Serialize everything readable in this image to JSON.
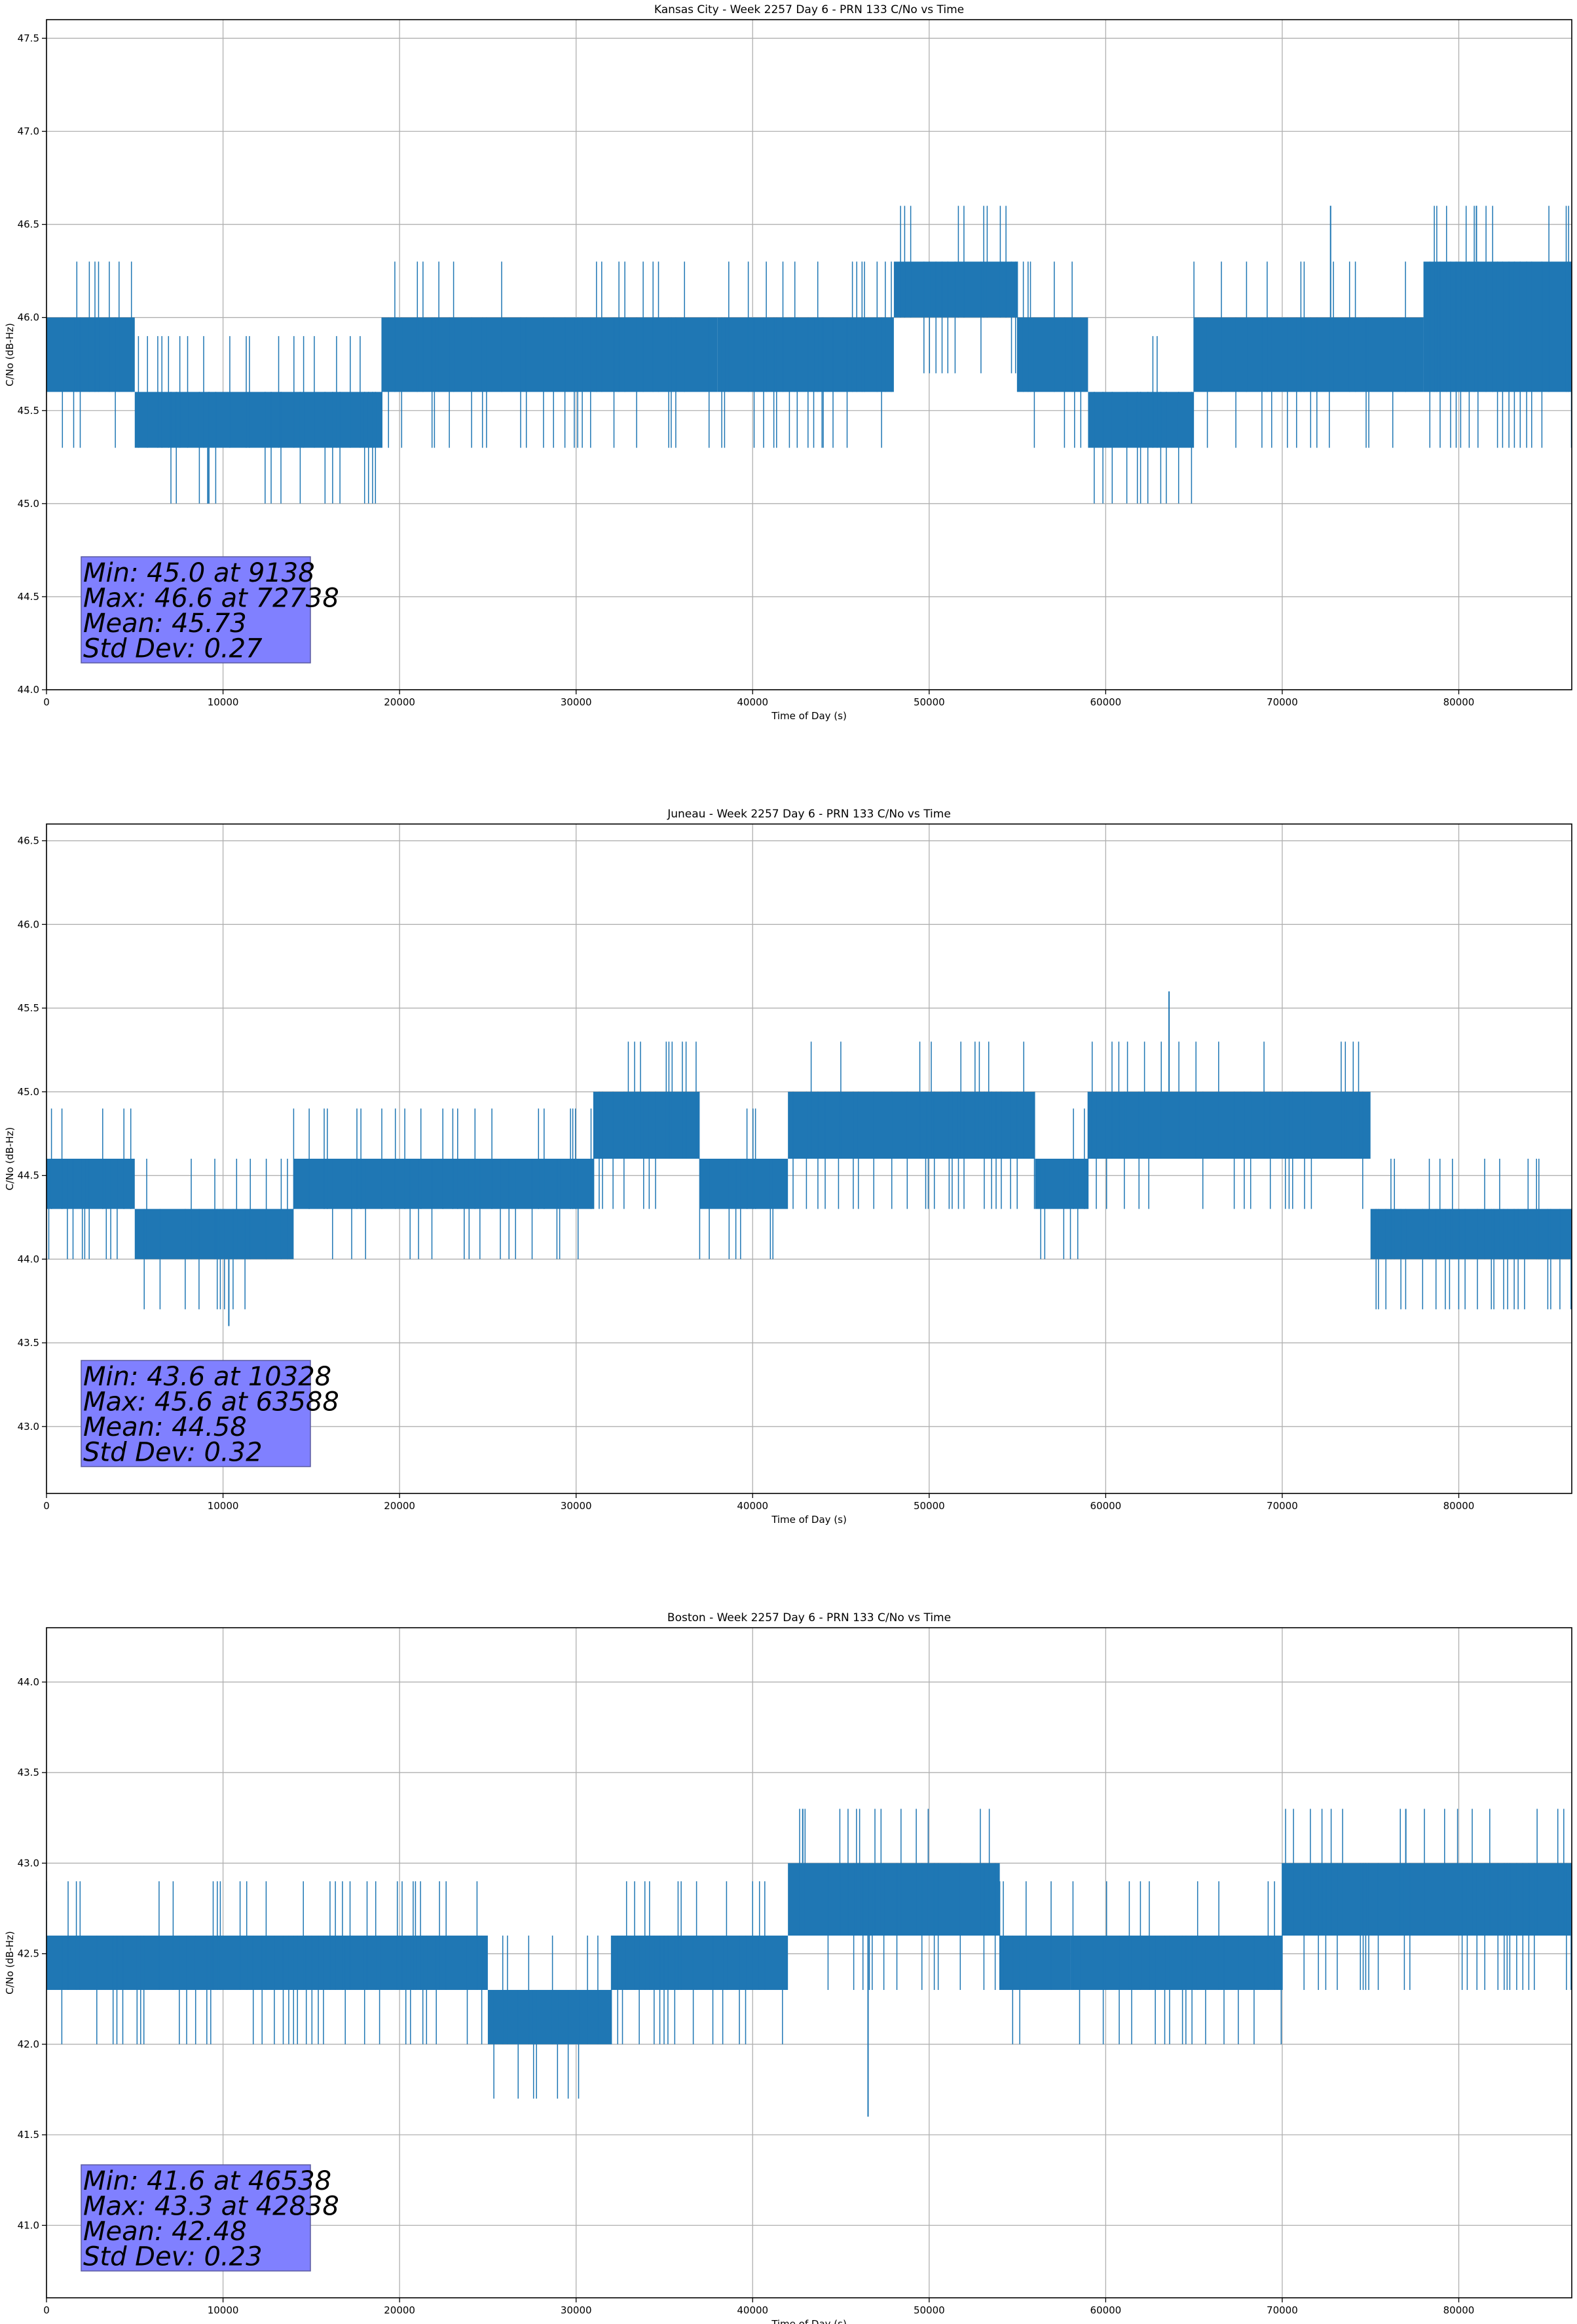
{
  "figure": {
    "series_color": "#1f77b4",
    "stats_box_color": "#8080ff"
  },
  "chart_data": [
    {
      "type": "line",
      "title": "Kansas City - Week 2257 Day 6 - PRN 133 C/No vs Time",
      "xlabel": "Time of Day (s)",
      "ylabel": "C/No (dB-Hz)",
      "xlim": [
        0,
        86400
      ],
      "ylim": [
        44.0,
        47.6
      ],
      "xticks": [
        0,
        10000,
        20000,
        30000,
        40000,
        50000,
        60000,
        70000,
        80000
      ],
      "yticks": [
        44.0,
        44.5,
        45.0,
        45.5,
        46.0,
        46.5,
        47.0,
        47.5
      ],
      "grid": true,
      "stats": {
        "min": "Min: 45.0 at 9138",
        "max": "Max: 46.6 at 72738",
        "mean": "Mean: 45.73",
        "std": "Std Dev: 0.27"
      },
      "series": [
        {
          "segments": [
            {
              "x": [
                0,
                5000
              ],
              "low": 45.6,
              "high": 46.0
            },
            {
              "x": [
                5000,
                19000
              ],
              "low": 45.3,
              "high": 45.6
            },
            {
              "x": [
                19000,
                38000
              ],
              "low": 45.6,
              "high": 46.0
            },
            {
              "x": [
                38000,
                44000
              ],
              "low": 45.6,
              "high": 46.0
            },
            {
              "x": [
                44000,
                48000
              ],
              "low": 45.6,
              "high": 46.0
            },
            {
              "x": [
                48000,
                55000
              ],
              "low": 46.0,
              "high": 46.3
            },
            {
              "x": [
                55000,
                59000
              ],
              "low": 45.6,
              "high": 46.0
            },
            {
              "x": [
                59000,
                65000
              ],
              "low": 45.3,
              "high": 45.6
            },
            {
              "x": [
                65000,
                78000
              ],
              "low": 45.6,
              "high": 46.0
            },
            {
              "x": [
                78000,
                86400
              ],
              "low": 45.6,
              "high": 46.3
            }
          ],
          "spikes": [
            {
              "x": 9138,
              "y": 45.0
            },
            {
              "x": 72738,
              "y": 46.6
            },
            {
              "x": 81000,
              "y": 46.6
            }
          ]
        }
      ]
    },
    {
      "type": "line",
      "title": "Juneau - Week 2257 Day 6 - PRN 133 C/No vs Time",
      "xlabel": "Time of Day (s)",
      "ylabel": "C/No (dB-Hz)",
      "xlim": [
        0,
        86400
      ],
      "ylim": [
        42.6,
        46.6
      ],
      "xticks": [
        0,
        10000,
        20000,
        30000,
        40000,
        50000,
        60000,
        70000,
        80000
      ],
      "yticks": [
        43.0,
        43.5,
        44.0,
        44.5,
        45.0,
        45.5,
        46.0,
        46.5
      ],
      "grid": true,
      "stats": {
        "min": "Min: 43.6 at 10328",
        "max": "Max: 45.6 at 63588",
        "mean": "Mean: 44.58",
        "std": "Std Dev: 0.32"
      },
      "series": [
        {
          "segments": [
            {
              "x": [
                0,
                5000
              ],
              "low": 44.3,
              "high": 44.6
            },
            {
              "x": [
                5000,
                14000
              ],
              "low": 44.0,
              "high": 44.3
            },
            {
              "x": [
                14000,
                31000
              ],
              "low": 44.3,
              "high": 44.6
            },
            {
              "x": [
                31000,
                37000
              ],
              "low": 44.6,
              "high": 45.0
            },
            {
              "x": [
                37000,
                42000
              ],
              "low": 44.3,
              "high": 44.6
            },
            {
              "x": [
                42000,
                56000
              ],
              "low": 44.6,
              "high": 45.0
            },
            {
              "x": [
                56000,
                59000
              ],
              "low": 44.3,
              "high": 44.6
            },
            {
              "x": [
                59000,
                75000
              ],
              "low": 44.6,
              "high": 45.0
            },
            {
              "x": [
                75000,
                86400
              ],
              "low": 44.0,
              "high": 44.3
            }
          ],
          "spikes": [
            {
              "x": 10328,
              "y": 43.6
            },
            {
              "x": 63588,
              "y": 45.6
            }
          ]
        }
      ]
    },
    {
      "type": "line",
      "title": "Boston - Week 2257 Day 6 - PRN 133 C/No vs Time",
      "xlabel": "Time of Day (s)",
      "ylabel": "C/No (dB-Hz)",
      "xlim": [
        0,
        86400
      ],
      "ylim": [
        40.6,
        44.3
      ],
      "xticks": [
        0,
        10000,
        20000,
        30000,
        40000,
        50000,
        60000,
        70000,
        80000
      ],
      "yticks": [
        41.0,
        41.5,
        42.0,
        42.5,
        43.0,
        43.5,
        44.0
      ],
      "grid": true,
      "stats": {
        "min": "Min: 41.6 at 46538",
        "max": "Max: 43.3 at 42838",
        "mean": "Mean: 42.48",
        "std": "Std Dev: 0.23"
      },
      "series": [
        {
          "segments": [
            {
              "x": [
                0,
                25000
              ],
              "low": 42.3,
              "high": 42.6
            },
            {
              "x": [
                25000,
                32000
              ],
              "low": 42.0,
              "high": 42.3
            },
            {
              "x": [
                32000,
                40000
              ],
              "low": 42.3,
              "high": 42.6
            },
            {
              "x": [
                40000,
                42000
              ],
              "low": 42.3,
              "high": 42.6
            },
            {
              "x": [
                42000,
                54000
              ],
              "low": 42.6,
              "high": 43.0
            },
            {
              "x": [
                54000,
                58000
              ],
              "low": 42.3,
              "high": 42.6
            },
            {
              "x": [
                58000,
                70000
              ],
              "low": 42.3,
              "high": 42.6
            },
            {
              "x": [
                70000,
                86400
              ],
              "low": 42.6,
              "high": 43.0
            }
          ],
          "spikes": [
            {
              "x": 46538,
              "y": 41.6
            },
            {
              "x": 42838,
              "y": 43.3
            },
            {
              "x": 77000,
              "y": 43.3
            }
          ]
        }
      ]
    }
  ]
}
